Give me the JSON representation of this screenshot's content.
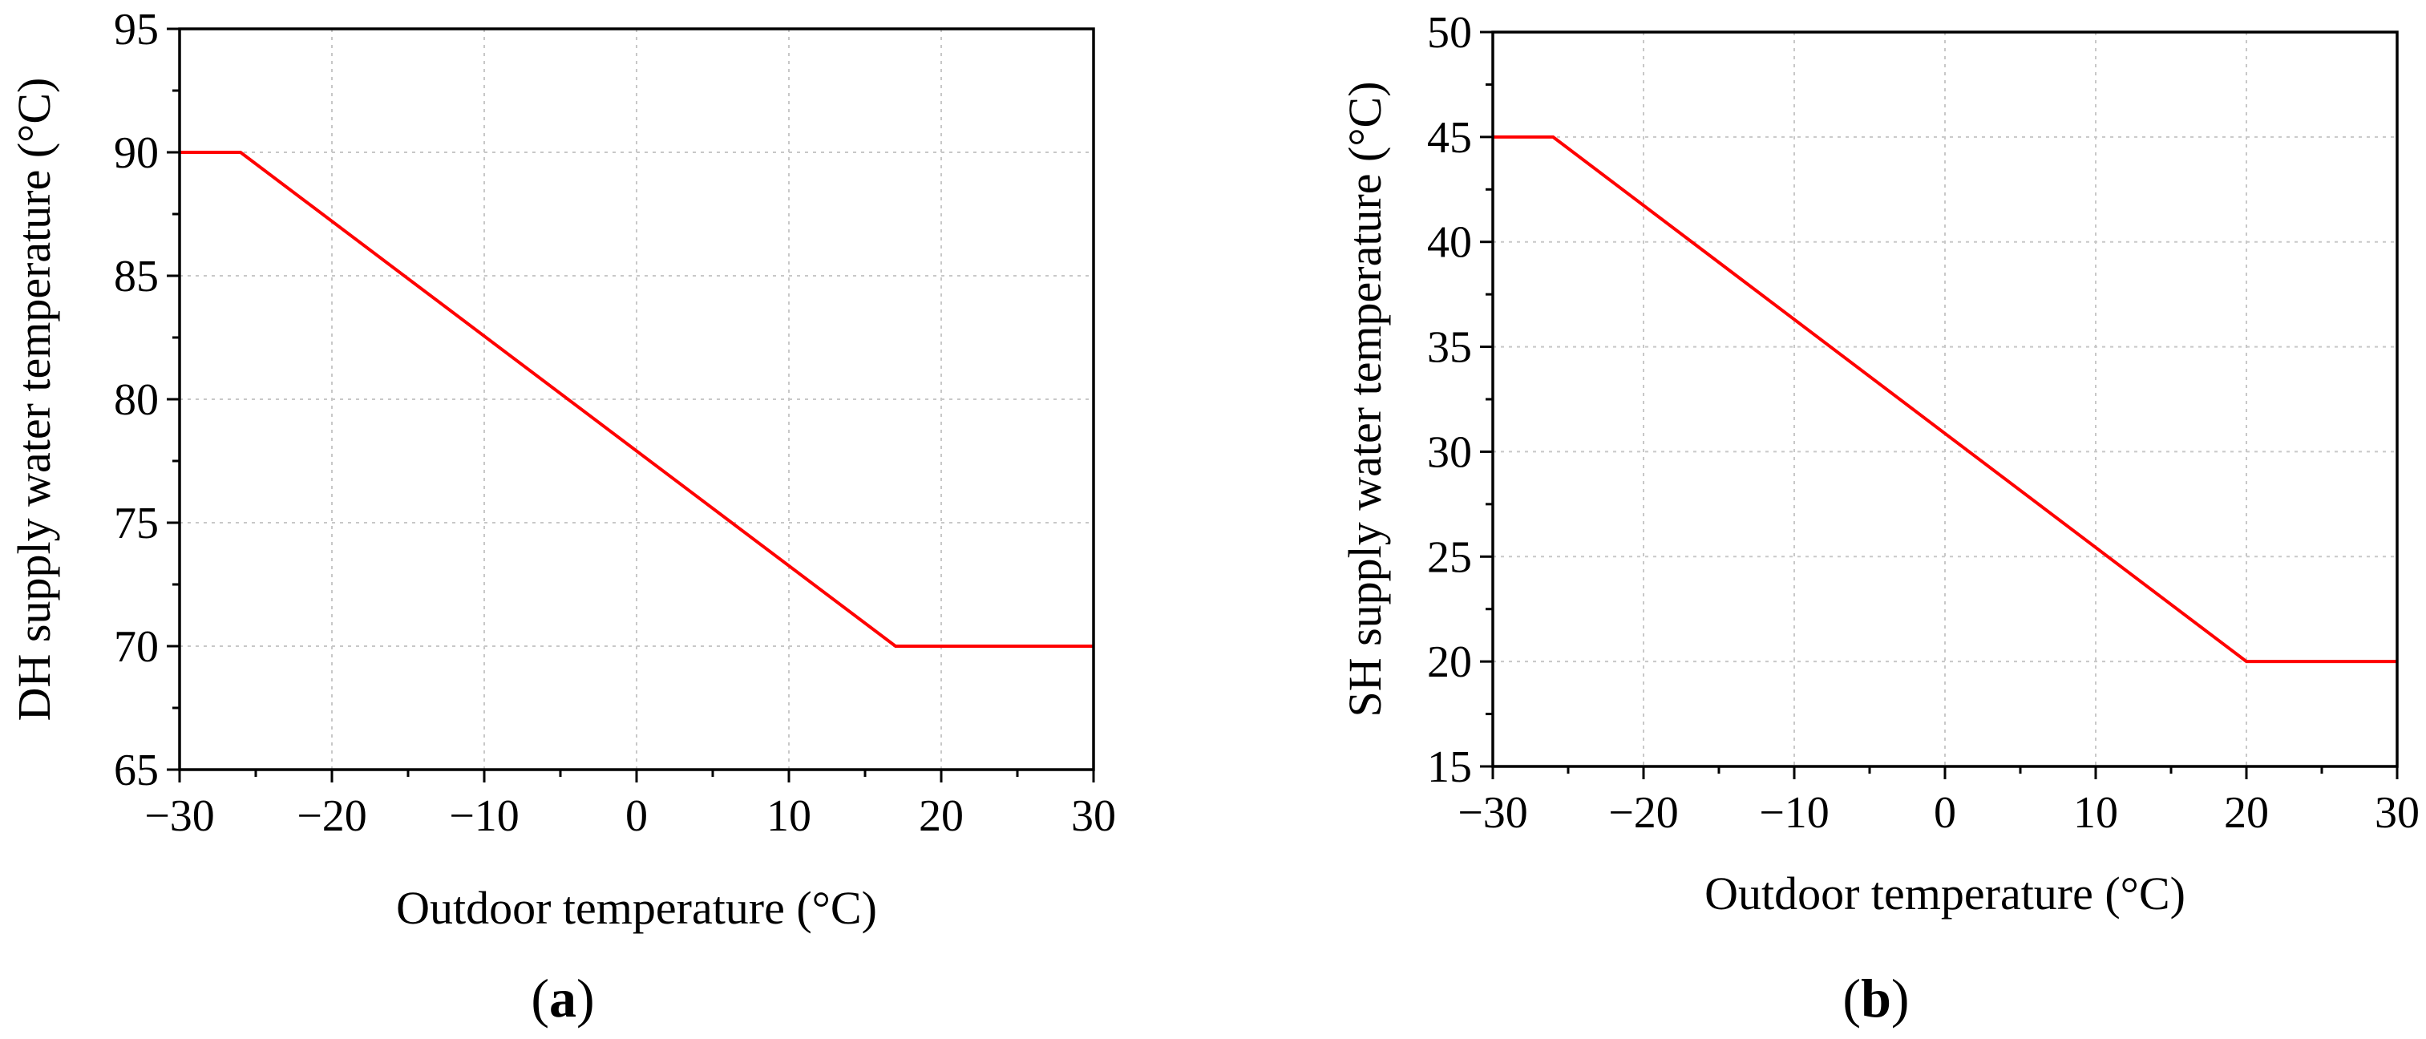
{
  "chart_data": [
    {
      "type": "line",
      "panel_label": "a",
      "xlabel": "Outdoor temperature (°C)",
      "ylabel": "DH supply water temperature (°C)",
      "xlim": [
        -30,
        30
      ],
      "ylim": [
        65,
        95
      ],
      "xticks": [
        -30,
        -20,
        -10,
        0,
        10,
        20,
        30
      ],
      "yticks": [
        65,
        70,
        75,
        80,
        85,
        90,
        95
      ],
      "xtick_labels": [
        "−30",
        "−20",
        "−10",
        "0",
        "10",
        "20",
        "30"
      ],
      "ytick_labels": [
        "65",
        "70",
        "75",
        "80",
        "85",
        "90",
        "95"
      ],
      "grid": true,
      "series": [
        {
          "name": "DH supply",
          "color": "#ff0000",
          "x": [
            -30,
            -26,
            17,
            30
          ],
          "y": [
            90,
            90,
            70,
            70
          ]
        }
      ]
    },
    {
      "type": "line",
      "panel_label": "b",
      "xlabel": "Outdoor temperature (°C)",
      "ylabel": "SH supply water temperature (°C)",
      "xlim": [
        -30,
        30
      ],
      "ylim": [
        15,
        50
      ],
      "xticks": [
        -30,
        -20,
        -10,
        0,
        10,
        20,
        30
      ],
      "yticks": [
        15,
        20,
        25,
        30,
        35,
        40,
        45,
        50
      ],
      "xtick_labels": [
        "−30",
        "−20",
        "−10",
        "0",
        "10",
        "20",
        "30"
      ],
      "ytick_labels": [
        "15",
        "20",
        "25",
        "30",
        "35",
        "40",
        "45",
        "50"
      ],
      "grid": true,
      "series": [
        {
          "name": "SH supply",
          "color": "#ff0000",
          "x": [
            -30,
            -26,
            20,
            30
          ],
          "y": [
            45,
            45,
            20,
            20
          ]
        }
      ]
    }
  ]
}
